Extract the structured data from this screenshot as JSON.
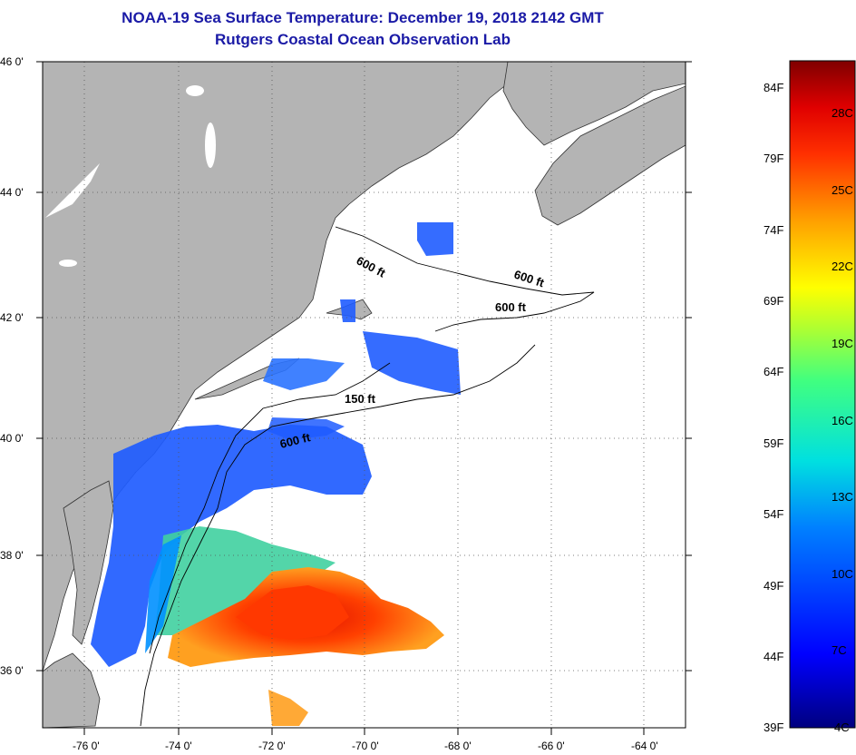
{
  "header": {
    "title": "NOAA-19 Sea Surface Temperature:  December 19, 2018 2142 GMT",
    "subtitle": "Rutgers Coastal Ocean Observation Lab"
  },
  "map": {
    "lat_labels": [
      "46 0'",
      "44 0'",
      "42 0'",
      "40 0'",
      "38 0'",
      "36 0'"
    ],
    "lon_labels": [
      "-76 0'",
      "-74 0'",
      "-72 0'",
      "-70 0'",
      "-68 0'",
      "-66 0'",
      "-64 0'"
    ],
    "contour_labels": [
      "600 ft",
      "600 ft",
      "600 ft",
      "150 ft",
      "600 ft"
    ],
    "colors": {
      "land": "#b4b4b4",
      "water": "#ffffff",
      "grid": "#555555"
    }
  },
  "colorbar": {
    "fahrenheit": [
      "84F",
      "79F",
      "74F",
      "69F",
      "64F",
      "59F",
      "54F",
      "49F",
      "44F",
      "39F"
    ],
    "celsius": [
      "28C",
      "25C",
      "22C",
      "19C",
      "16C",
      "13C",
      "10C",
      "7C",
      "4C"
    ],
    "range_f": [
      39,
      86
    ],
    "range_c": [
      4,
      30
    ]
  }
}
